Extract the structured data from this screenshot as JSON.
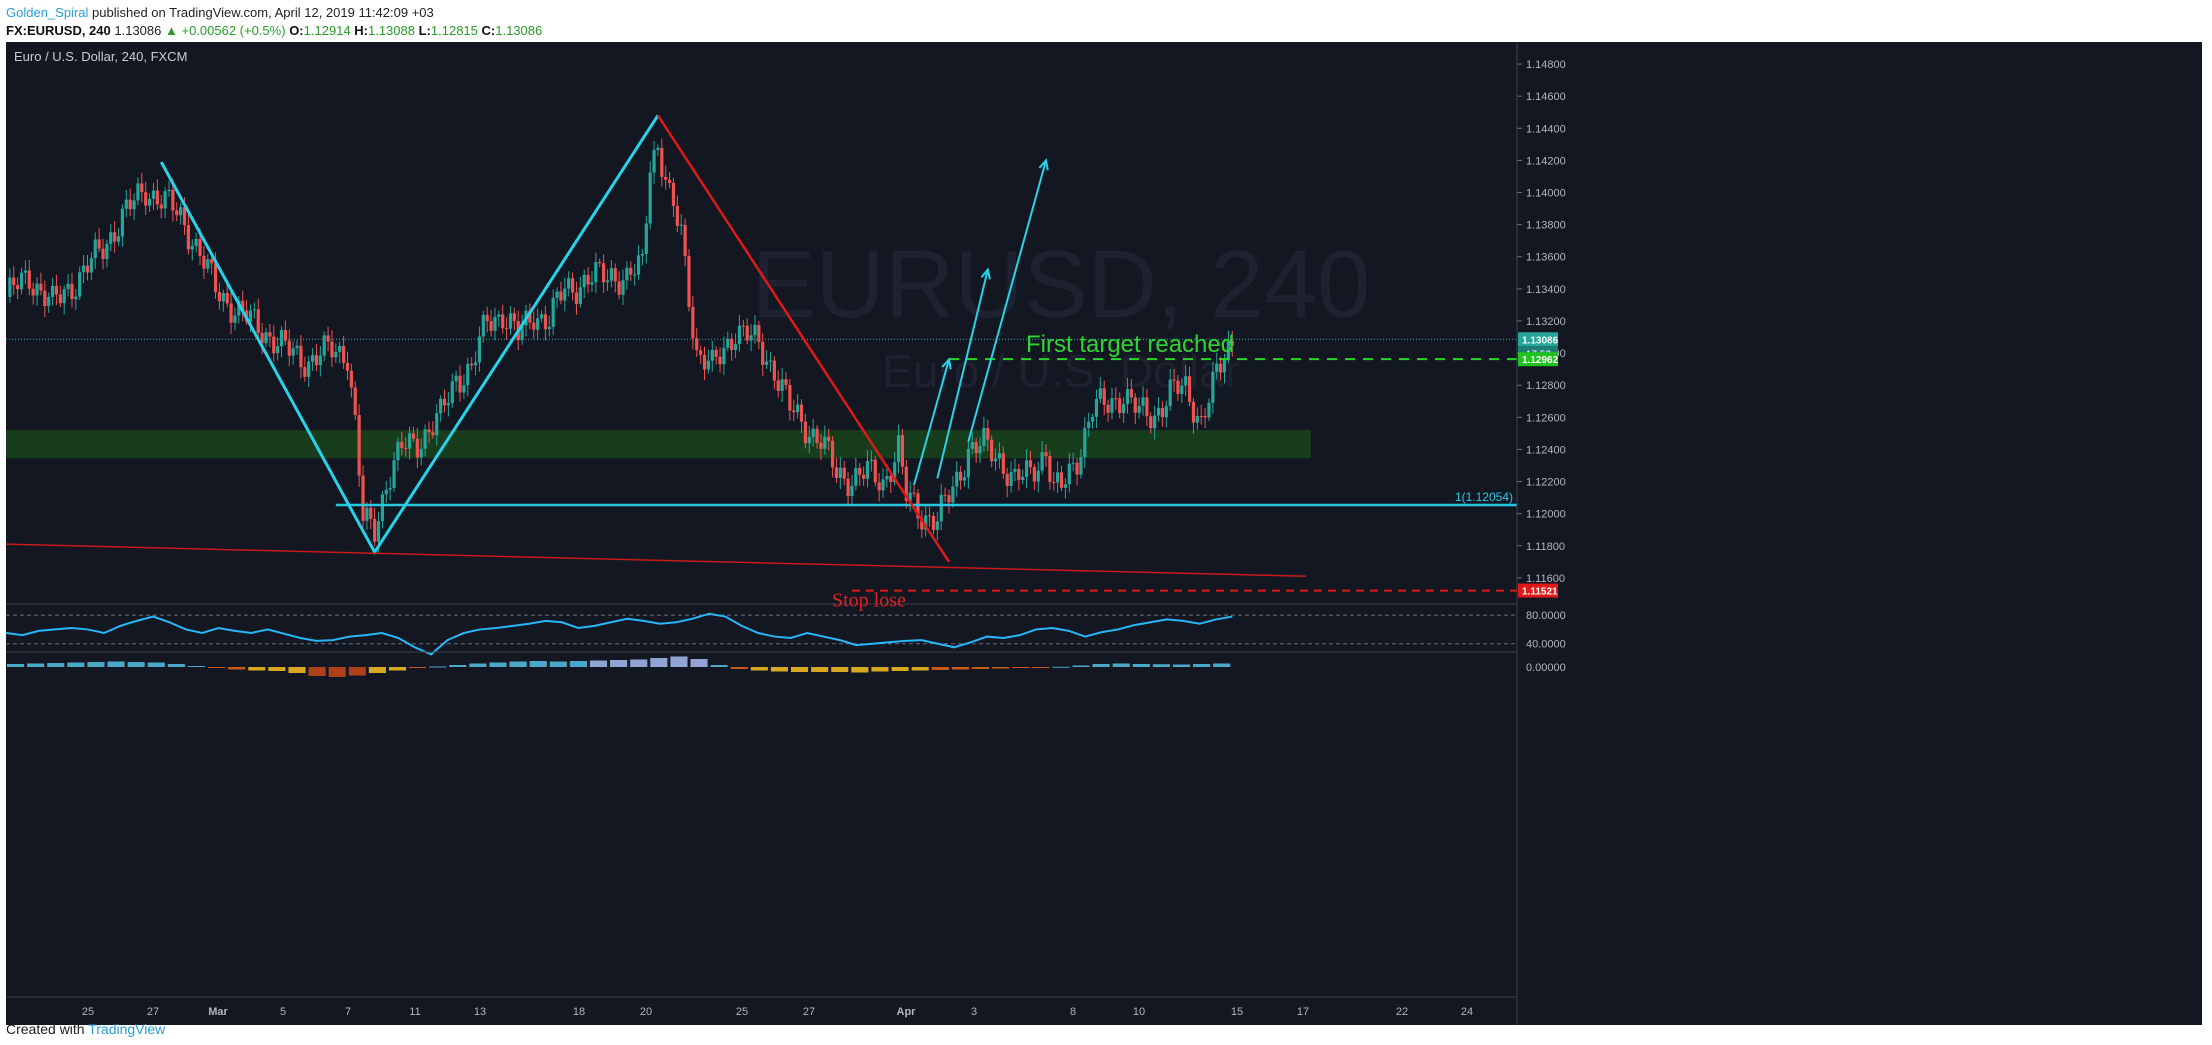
{
  "header": {
    "publisher": "Golden_Spiral",
    "published_text": "published on TradingView.com, April 12, 2019 11:42:09 +03",
    "symbol": "FX:EURUSD, 240",
    "last": "1.13086",
    "change": "▲ +0.00562 (+0.5%)",
    "o_label": "O:",
    "o": "1.12914",
    "h_label": "H:",
    "h": "1.13088",
    "l_label": "L:",
    "l": "1.12815",
    "c_label": "C:",
    "c": "1.13086"
  },
  "footer": {
    "created_with": "Created with",
    "brand": "TradingView"
  },
  "chart_data": {
    "type": "line",
    "title": "Euro / U.S. Dollar, 240, FXCM",
    "watermark_symbol": "EURUSD, 240",
    "watermark_name": "Euro / U.S. Dollar",
    "ylim": [
      1.114,
      1.149
    ],
    "y_ticks": [
      "1.14800",
      "1.14600",
      "1.14400",
      "1.14200",
      "1.14000",
      "1.13800",
      "1.13600",
      "1.13400",
      "1.13200",
      "1.13000",
      "1.12800",
      "1.12600",
      "1.12400",
      "1.12200",
      "1.12000",
      "1.11800",
      "1.11600"
    ],
    "x_ticks": [
      "25",
      "27",
      "Mar",
      "5",
      "7",
      "11",
      "13",
      "18",
      "20",
      "25",
      "27",
      "Apr",
      "3",
      "8",
      "10",
      "15",
      "17",
      "22",
      "24"
    ],
    "price_series": [
      {
        "t": 0,
        "p": 1.1335
      },
      {
        "t": 6,
        "p": 1.1348
      },
      {
        "t": 12,
        "p": 1.133
      },
      {
        "t": 18,
        "p": 1.1345
      },
      {
        "t": 24,
        "p": 1.1362
      },
      {
        "t": 30,
        "p": 1.1385
      },
      {
        "t": 36,
        "p": 1.1402
      },
      {
        "t": 40,
        "p": 1.1396
      },
      {
        "t": 45,
        "p": 1.1385
      },
      {
        "t": 48,
        "p": 1.1372
      },
      {
        "t": 54,
        "p": 1.134
      },
      {
        "t": 60,
        "p": 1.1325
      },
      {
        "t": 66,
        "p": 1.1315
      },
      {
        "t": 72,
        "p": 1.1302
      },
      {
        "t": 78,
        "p": 1.1295
      },
      {
        "t": 84,
        "p": 1.1302
      },
      {
        "t": 88,
        "p": 1.13
      },
      {
        "t": 90,
        "p": 1.1255
      },
      {
        "t": 92,
        "p": 1.1195
      },
      {
        "t": 95,
        "p": 1.119
      },
      {
        "t": 98,
        "p": 1.122
      },
      {
        "t": 102,
        "p": 1.124
      },
      {
        "t": 106,
        "p": 1.1245
      },
      {
        "t": 112,
        "p": 1.126
      },
      {
        "t": 116,
        "p": 1.1285
      },
      {
        "t": 120,
        "p": 1.129
      },
      {
        "t": 124,
        "p": 1.132
      },
      {
        "t": 128,
        "p": 1.1325
      },
      {
        "t": 132,
        "p": 1.131
      },
      {
        "t": 136,
        "p": 1.1325
      },
      {
        "t": 140,
        "p": 1.132
      },
      {
        "t": 144,
        "p": 1.134
      },
      {
        "t": 150,
        "p": 1.1345
      },
      {
        "t": 156,
        "p": 1.135
      },
      {
        "t": 160,
        "p": 1.1345
      },
      {
        "t": 164,
        "p": 1.1355
      },
      {
        "t": 166,
        "p": 1.142
      },
      {
        "t": 168,
        "p": 1.143
      },
      {
        "t": 171,
        "p": 1.1395
      },
      {
        "t": 174,
        "p": 1.1375
      },
      {
        "t": 178,
        "p": 1.13
      },
      {
        "t": 182,
        "p": 1.129
      },
      {
        "t": 188,
        "p": 1.1315
      },
      {
        "t": 194,
        "p": 1.1305
      },
      {
        "t": 198,
        "p": 1.129
      },
      {
        "t": 202,
        "p": 1.1265
      },
      {
        "t": 206,
        "p": 1.1255
      },
      {
        "t": 210,
        "p": 1.1245
      },
      {
        "t": 214,
        "p": 1.1225
      },
      {
        "t": 218,
        "p": 1.1222
      },
      {
        "t": 222,
        "p": 1.1225
      },
      {
        "t": 226,
        "p": 1.122
      },
      {
        "t": 230,
        "p": 1.124
      },
      {
        "t": 232,
        "p": 1.121
      },
      {
        "t": 236,
        "p": 1.12
      },
      {
        "t": 240,
        "p": 1.1196
      },
      {
        "t": 244,
        "p": 1.1215
      },
      {
        "t": 248,
        "p": 1.124
      },
      {
        "t": 252,
        "p": 1.1242
      },
      {
        "t": 256,
        "p": 1.1235
      },
      {
        "t": 260,
        "p": 1.122
      },
      {
        "t": 264,
        "p": 1.1225
      },
      {
        "t": 268,
        "p": 1.124
      },
      {
        "t": 270,
        "p": 1.1215
      },
      {
        "t": 272,
        "p": 1.1215
      },
      {
        "t": 276,
        "p": 1.1235
      },
      {
        "t": 280,
        "p": 1.1265
      },
      {
        "t": 284,
        "p": 1.1268
      },
      {
        "t": 288,
        "p": 1.1275
      },
      {
        "t": 292,
        "p": 1.1262
      },
      {
        "t": 296,
        "p": 1.1262
      },
      {
        "t": 300,
        "p": 1.1275
      },
      {
        "t": 304,
        "p": 1.1278
      },
      {
        "t": 308,
        "p": 1.1258
      },
      {
        "t": 312,
        "p": 1.1285
      },
      {
        "t": 316,
        "p": 1.1309
      }
    ],
    "annotations": {
      "first_target_label": "First target reached",
      "stop_loss_label": "Stop lose",
      "fib_label": "1(1.12054)",
      "fib_level": 1.12054,
      "target_level": 1.12962,
      "stop_level": 1.11521,
      "support_zone": [
        1.12345,
        1.1252
      ],
      "current_price": 1.13086,
      "timer": "17:53",
      "zigzag_cyan": [
        {
          "t": 40,
          "p": 1.1419
        },
        {
          "t": 95,
          "p": 1.1176
        },
        {
          "t": 168,
          "p": 1.1448
        }
      ],
      "red_trendline": [
        {
          "t": 168,
          "p": 1.1448
        },
        {
          "t": 243,
          "p": 1.117
        }
      ],
      "red_support_line": [
        {
          "t": 0,
          "p": 1.1181
        },
        {
          "t": 335,
          "p": 1.1161
        }
      ],
      "arrows": [
        {
          "from": {
            "t": 234,
            "p": 1.1218
          },
          "to": {
            "t": 243,
            "p": 1.1296
          }
        },
        {
          "from": {
            "t": 240,
            "p": 1.1222
          },
          "to": {
            "t": 253,
            "p": 1.1352
          }
        },
        {
          "from": {
            "t": 248,
            "p": 1.1245
          },
          "to": {
            "t": 268,
            "p": 1.142
          }
        }
      ]
    },
    "price_labels": [
      "1.13086",
      "1.12962",
      "1.11521"
    ],
    "rsi": {
      "levels": [
        80,
        40
      ],
      "tick_labels": [
        "80.0000",
        "40.0000"
      ],
      "values": [
        55,
        52,
        58,
        60,
        62,
        60,
        55,
        65,
        72,
        78,
        70,
        60,
        55,
        62,
        58,
        55,
        60,
        54,
        48,
        44,
        45,
        50,
        52,
        55,
        48,
        35,
        25,
        45,
        55,
        60,
        62,
        65,
        68,
        72,
        70,
        62,
        65,
        70,
        75,
        72,
        68,
        70,
        75,
        82,
        78,
        65,
        55,
        50,
        48,
        55,
        50,
        45,
        38,
        40,
        42,
        44,
        45,
        40,
        35,
        42,
        50,
        48,
        52,
        60,
        62,
        58,
        50,
        56,
        60,
        66,
        70,
        74,
        72,
        68,
        74,
        78
      ]
    },
    "macd": {
      "tick_label": "0.00000",
      "values": [
        0.3,
        0.35,
        0.4,
        0.45,
        0.5,
        0.55,
        0.5,
        0.45,
        0.3,
        0.1,
        -0.1,
        -0.25,
        -0.35,
        -0.4,
        -0.6,
        -0.9,
        -1.0,
        -0.85,
        -0.6,
        -0.35,
        -0.1,
        0.05,
        0.2,
        0.35,
        0.45,
        0.55,
        0.6,
        0.55,
        0.6,
        0.65,
        0.7,
        0.75,
        0.9,
        1.05,
        0.8,
        0.2,
        -0.2,
        -0.35,
        -0.45,
        -0.5,
        -0.5,
        -0.5,
        -0.55,
        -0.45,
        -0.4,
        -0.35,
        -0.3,
        -0.25,
        -0.2,
        -0.15,
        -0.1,
        -0.05,
        0.02,
        0.15,
        0.3,
        0.35,
        0.3,
        0.28,
        0.25,
        0.3,
        0.35
      ]
    }
  }
}
